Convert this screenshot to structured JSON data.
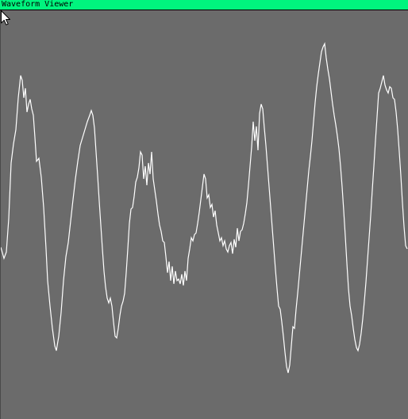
{
  "window": {
    "title": "Waveform Viewer"
  },
  "colors": {
    "title_bar": "#00f47e",
    "background": "#6b6b6b",
    "waveform": "#ffffff"
  },
  "icons": {
    "cursor": "mouse-pointer-icon"
  }
}
